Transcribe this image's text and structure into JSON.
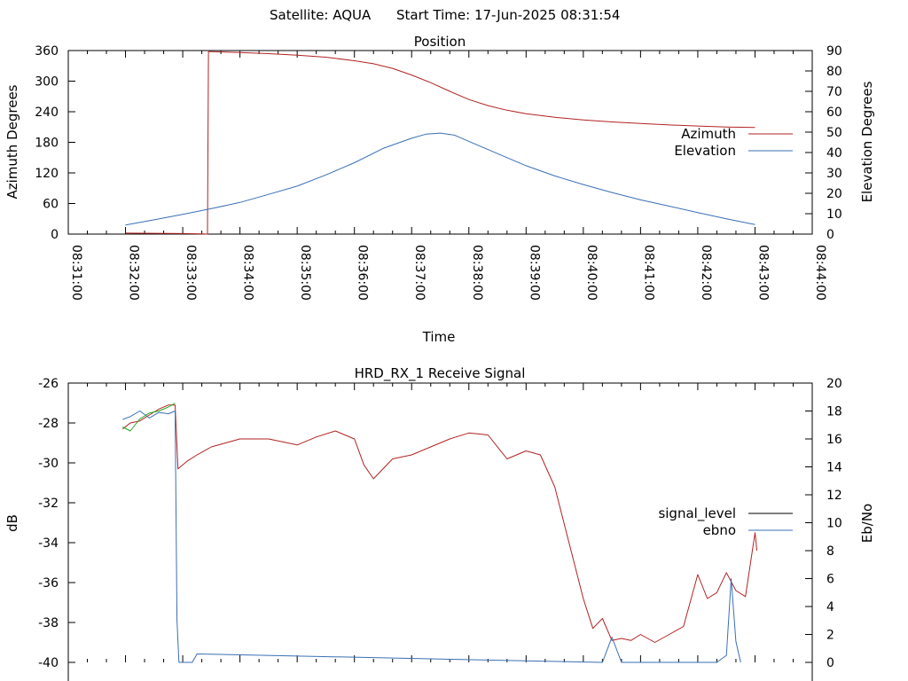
{
  "header": {
    "satellite": "Satellite: AQUA",
    "start_time": "Start Time: 17-Jun-2025 08:31:54"
  },
  "chart_data": [
    {
      "type": "line",
      "title": "Position",
      "xlabel": "Time",
      "ylabel": "Azimuth Degrees",
      "y2label": "Elevation Degrees",
      "x_ticks": [
        "08:31:00",
        "08:32:00",
        "08:33:00",
        "08:34:00",
        "08:35:00",
        "08:36:00",
        "08:37:00",
        "08:38:00",
        "08:39:00",
        "08:40:00",
        "08:41:00",
        "08:42:00",
        "08:43:00",
        "08:44:00"
      ],
      "y_ticks": [
        "0",
        "60",
        "120",
        "180",
        "240",
        "300",
        "360"
      ],
      "y2_ticks": [
        "0",
        "10",
        "20",
        "30",
        "40",
        "50",
        "60",
        "70",
        "80",
        "90"
      ],
      "ylim": [
        0,
        360
      ],
      "y2lim": [
        0,
        90
      ],
      "xlim": [
        "08:31:00",
        "08:44:00"
      ],
      "grid": false,
      "legend_position": "right",
      "series": [
        {
          "name": "Azimuth",
          "color": "#b22222",
          "axis": "y",
          "x": [
            "08:32:00",
            "08:32:30",
            "08:33:00",
            "08:33:20",
            "08:33:26",
            "08:33:27",
            "08:33:30",
            "08:34:00",
            "08:34:30",
            "08:35:00",
            "08:35:30",
            "08:36:00",
            "08:36:20",
            "08:36:40",
            "08:37:00",
            "08:37:20",
            "08:37:40",
            "08:38:00",
            "08:38:20",
            "08:38:40",
            "08:39:00",
            "08:39:30",
            "08:40:00",
            "08:40:30",
            "08:41:00",
            "08:41:30",
            "08:42:00",
            "08:42:30",
            "08:43:00"
          ],
          "values": [
            2,
            1.5,
            1,
            0.5,
            0,
            358,
            358,
            356,
            354,
            351,
            347,
            340,
            334,
            325,
            312,
            297,
            280,
            264,
            252,
            243,
            236,
            229,
            224,
            220,
            217,
            214,
            212,
            210,
            209
          ]
        },
        {
          "name": "Elevation",
          "color": "#3a6fb5",
          "axis": "y2",
          "x": [
            "08:32:00",
            "08:32:30",
            "08:33:00",
            "08:33:30",
            "08:34:00",
            "08:34:30",
            "08:35:00",
            "08:35:30",
            "08:36:00",
            "08:36:30",
            "08:37:00",
            "08:37:15",
            "08:37:30",
            "08:37:45",
            "08:38:00",
            "08:38:30",
            "08:39:00",
            "08:39:30",
            "08:40:00",
            "08:40:30",
            "08:41:00",
            "08:41:30",
            "08:42:00",
            "08:42:30",
            "08:43:00"
          ],
          "values": [
            4.5,
            7,
            9.7,
            12.5,
            15.5,
            19.5,
            23.5,
            29,
            35,
            42,
            47,
            49,
            49.5,
            48.5,
            45.5,
            39.5,
            33.5,
            28.5,
            24.3,
            20.4,
            16.8,
            13.7,
            10.5,
            7.5,
            4.7
          ]
        }
      ]
    },
    {
      "type": "line",
      "title": "HRD_RX_1 Receive Signal",
      "xlabel": "",
      "ylabel": "dB",
      "y2label": "Eb/No",
      "y_ticks": [
        "-40",
        "-38",
        "-36",
        "-34",
        "-32",
        "-30",
        "-28",
        "-26"
      ],
      "y2_ticks": [
        "0",
        "2",
        "4",
        "6",
        "8",
        "10",
        "12",
        "14",
        "16",
        "18",
        "20"
      ],
      "ylim": [
        -40,
        -26
      ],
      "y2lim": [
        0,
        20
      ],
      "xlim": [
        "08:31:00",
        "08:44:00"
      ],
      "grid": false,
      "legend_position": "right",
      "legend": [
        {
          "name": "signal_level",
          "color": "#000000"
        },
        {
          "name": "ebno",
          "color": "#3a6fb5"
        }
      ],
      "series": [
        {
          "name": "signal_level",
          "color": "#b22222",
          "axis": "y",
          "x": [
            "08:31:57",
            "08:32:05",
            "08:32:15",
            "08:32:25",
            "08:32:35",
            "08:32:45",
            "08:32:52",
            "08:32:55",
            "08:33:05",
            "08:33:15",
            "08:33:30",
            "08:33:45",
            "08:34:00",
            "08:34:30",
            "08:35:00",
            "08:35:20",
            "08:35:40",
            "08:36:00",
            "08:36:10",
            "08:36:20",
            "08:36:40",
            "08:37:00",
            "08:37:20",
            "08:37:40",
            "08:38:00",
            "08:38:20",
            "08:38:40",
            "08:39:00",
            "08:39:15",
            "08:39:30",
            "08:39:45",
            "08:40:00",
            "08:40:10",
            "08:40:20",
            "08:40:30",
            "08:40:40",
            "08:40:50",
            "08:41:00",
            "08:41:15",
            "08:41:30",
            "08:41:45",
            "08:42:00",
            "08:42:10",
            "08:42:20",
            "08:42:30",
            "08:42:40",
            "08:42:50",
            "08:43:00",
            "08:43:02"
          ],
          "values": [
            -28.3,
            -28.0,
            -27.9,
            -27.6,
            -27.3,
            -27.1,
            -27.1,
            -30.3,
            -29.9,
            -29.6,
            -29.2,
            -29.0,
            -28.8,
            -28.8,
            -29.1,
            -28.7,
            -28.4,
            -28.8,
            -30.1,
            -30.8,
            -29.8,
            -29.6,
            -29.2,
            -28.8,
            -28.5,
            -28.6,
            -29.8,
            -29.4,
            -29.6,
            -31.2,
            -34.0,
            -36.8,
            -38.3,
            -37.8,
            -38.9,
            -38.8,
            -38.9,
            -38.6,
            -39.0,
            -38.6,
            -38.2,
            -35.6,
            -36.8,
            -36.5,
            -35.5,
            -36.4,
            -36.7,
            -33.5,
            -34.4
          ]
        },
        {
          "name": "ebno",
          "color": "#3a6fb5",
          "axis": "y2",
          "x": [
            "08:31:57",
            "08:32:05",
            "08:32:15",
            "08:32:25",
            "08:32:35",
            "08:32:45",
            "08:32:52",
            "08:32:54",
            "08:32:56",
            "08:33:00",
            "08:33:10",
            "08:33:15",
            "08:40:20",
            "08:40:30",
            "08:40:40",
            "08:42:20",
            "08:42:30",
            "08:42:35",
            "08:42:40",
            "08:42:45"
          ],
          "values": [
            17.4,
            17.6,
            18.0,
            17.5,
            17.9,
            17.8,
            18.0,
            3.0,
            0.0,
            0.0,
            0.0,
            0.6,
            0.0,
            1.8,
            0.0,
            0.0,
            0.5,
            6.0,
            1.5,
            0.0
          ]
        },
        {
          "name": "",
          "color": "#22aa22",
          "axis": "y",
          "x": [
            "08:31:57",
            "08:32:05",
            "08:32:15",
            "08:32:25",
            "08:32:35",
            "08:32:45",
            "08:32:52"
          ],
          "values": [
            -28.2,
            -28.4,
            -27.8,
            -27.5,
            -27.4,
            -27.2,
            -27.0
          ]
        }
      ]
    }
  ]
}
